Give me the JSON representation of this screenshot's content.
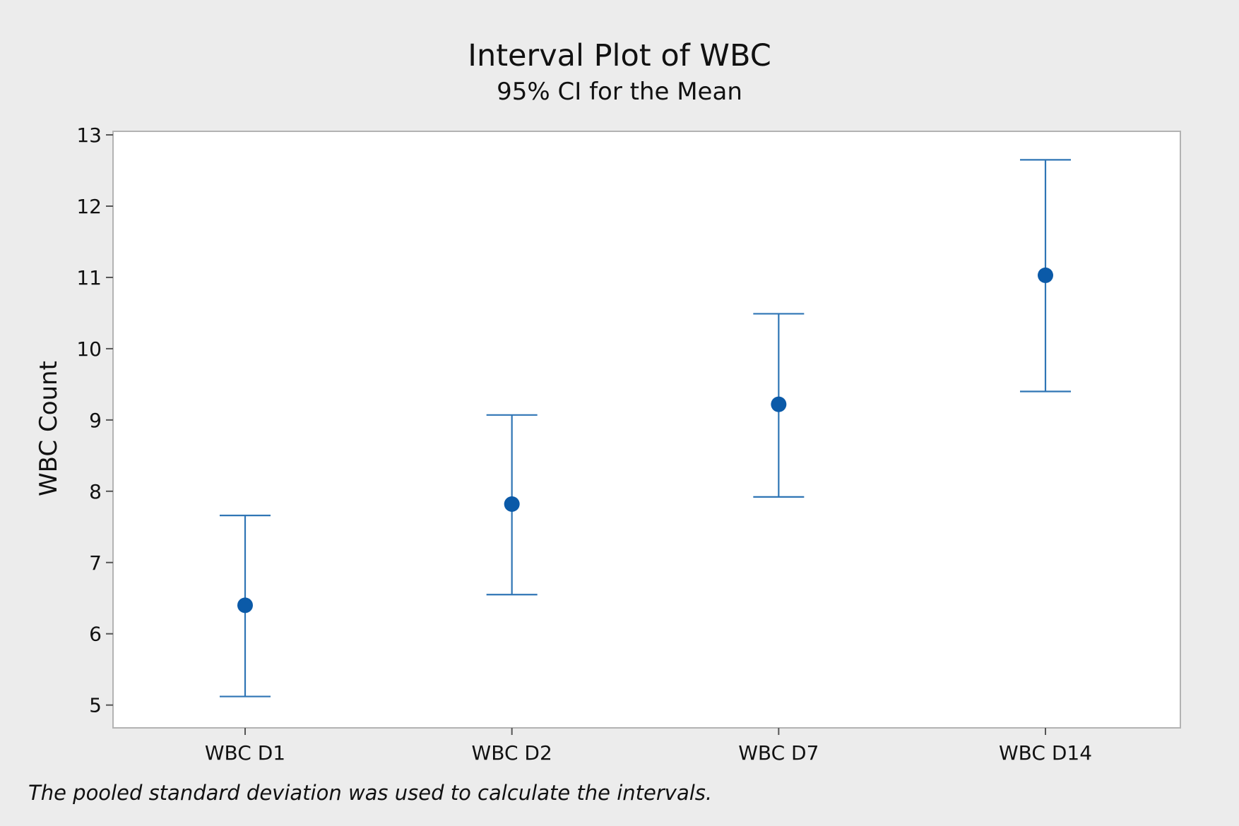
{
  "chart_data": {
    "type": "scatter",
    "subtype": "interval",
    "title": "Interval Plot of WBC",
    "subtitle": "95% CI for the Mean",
    "xlabel": "",
    "ylabel": "WBC Count",
    "categories": [
      "WBC D1",
      "WBC D2",
      "WBC D7",
      "WBC D14"
    ],
    "means": [
      6.4,
      7.82,
      9.22,
      11.03
    ],
    "ci_lower": [
      5.12,
      6.55,
      7.92,
      9.4
    ],
    "ci_upper": [
      7.66,
      9.07,
      10.49,
      12.65
    ],
    "ylim": [
      4.68,
      13.05
    ],
    "yticks": [
      5,
      6,
      7,
      8,
      9,
      10,
      11,
      12,
      13
    ],
    "grid": false,
    "legend": "none",
    "footnote": "The pooled standard deviation was used to calculate the intervals.",
    "colors": {
      "series": "#2f75b5",
      "point": "#0b5aa8",
      "background": "#ececec",
      "plot_area": "#ffffff",
      "frame": "#b3b3b3"
    }
  }
}
